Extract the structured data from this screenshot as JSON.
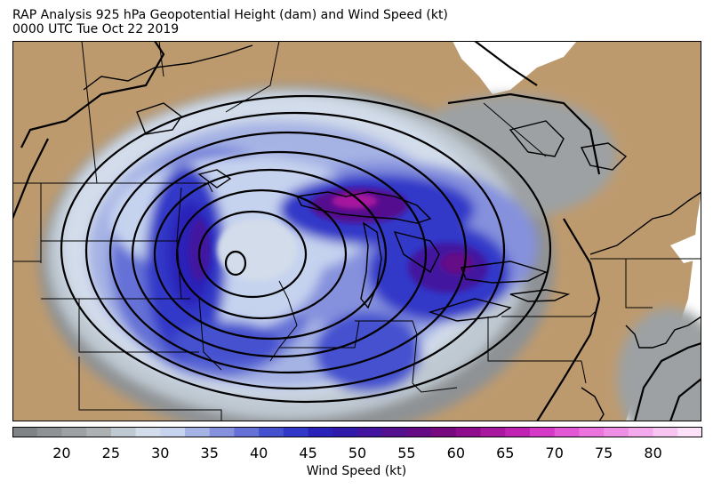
{
  "title": {
    "line1": "RAP Analysis 925 hPa Geopotential Height (dam) and Wind Speed (kt)",
    "line2": "0000 UTC Tue Oct 22 2019"
  },
  "colorbar": {
    "label": "Wind Speed (kt)",
    "tick_labels": [
      "20",
      "25",
      "30",
      "35",
      "40",
      "45",
      "50",
      "55",
      "60",
      "65",
      "70",
      "75",
      "80"
    ],
    "tick_values": [
      20,
      25,
      30,
      35,
      40,
      45,
      50,
      55,
      60,
      65,
      70,
      75,
      80
    ],
    "range": [
      15,
      85
    ],
    "bin_width": 2.5,
    "colors": [
      "#7f8385",
      "#8e9294",
      "#9da1a3",
      "#acb0b2",
      "#bfc9d2",
      "#d2dcea",
      "#c6d3ef",
      "#a5b2e4",
      "#8591dd",
      "#6571d6",
      "#4551cf",
      "#3138c8",
      "#2a21b8",
      "#301aab",
      "#42149f",
      "#54108f",
      "#650b86",
      "#78087e",
      "#8f0c8d",
      "#a8189f",
      "#c022b3",
      "#d53ac6",
      "#e257d3",
      "#ea73de",
      "#ef8ee5",
      "#f3a9ec",
      "#f8c5f3",
      "#fce1f9"
    ]
  },
  "map": {
    "land_color": "#bd9a6e",
    "water_color": "#ffffff",
    "contour_color": "#000000",
    "low_center": "closed low centered over central Minnesota"
  }
}
